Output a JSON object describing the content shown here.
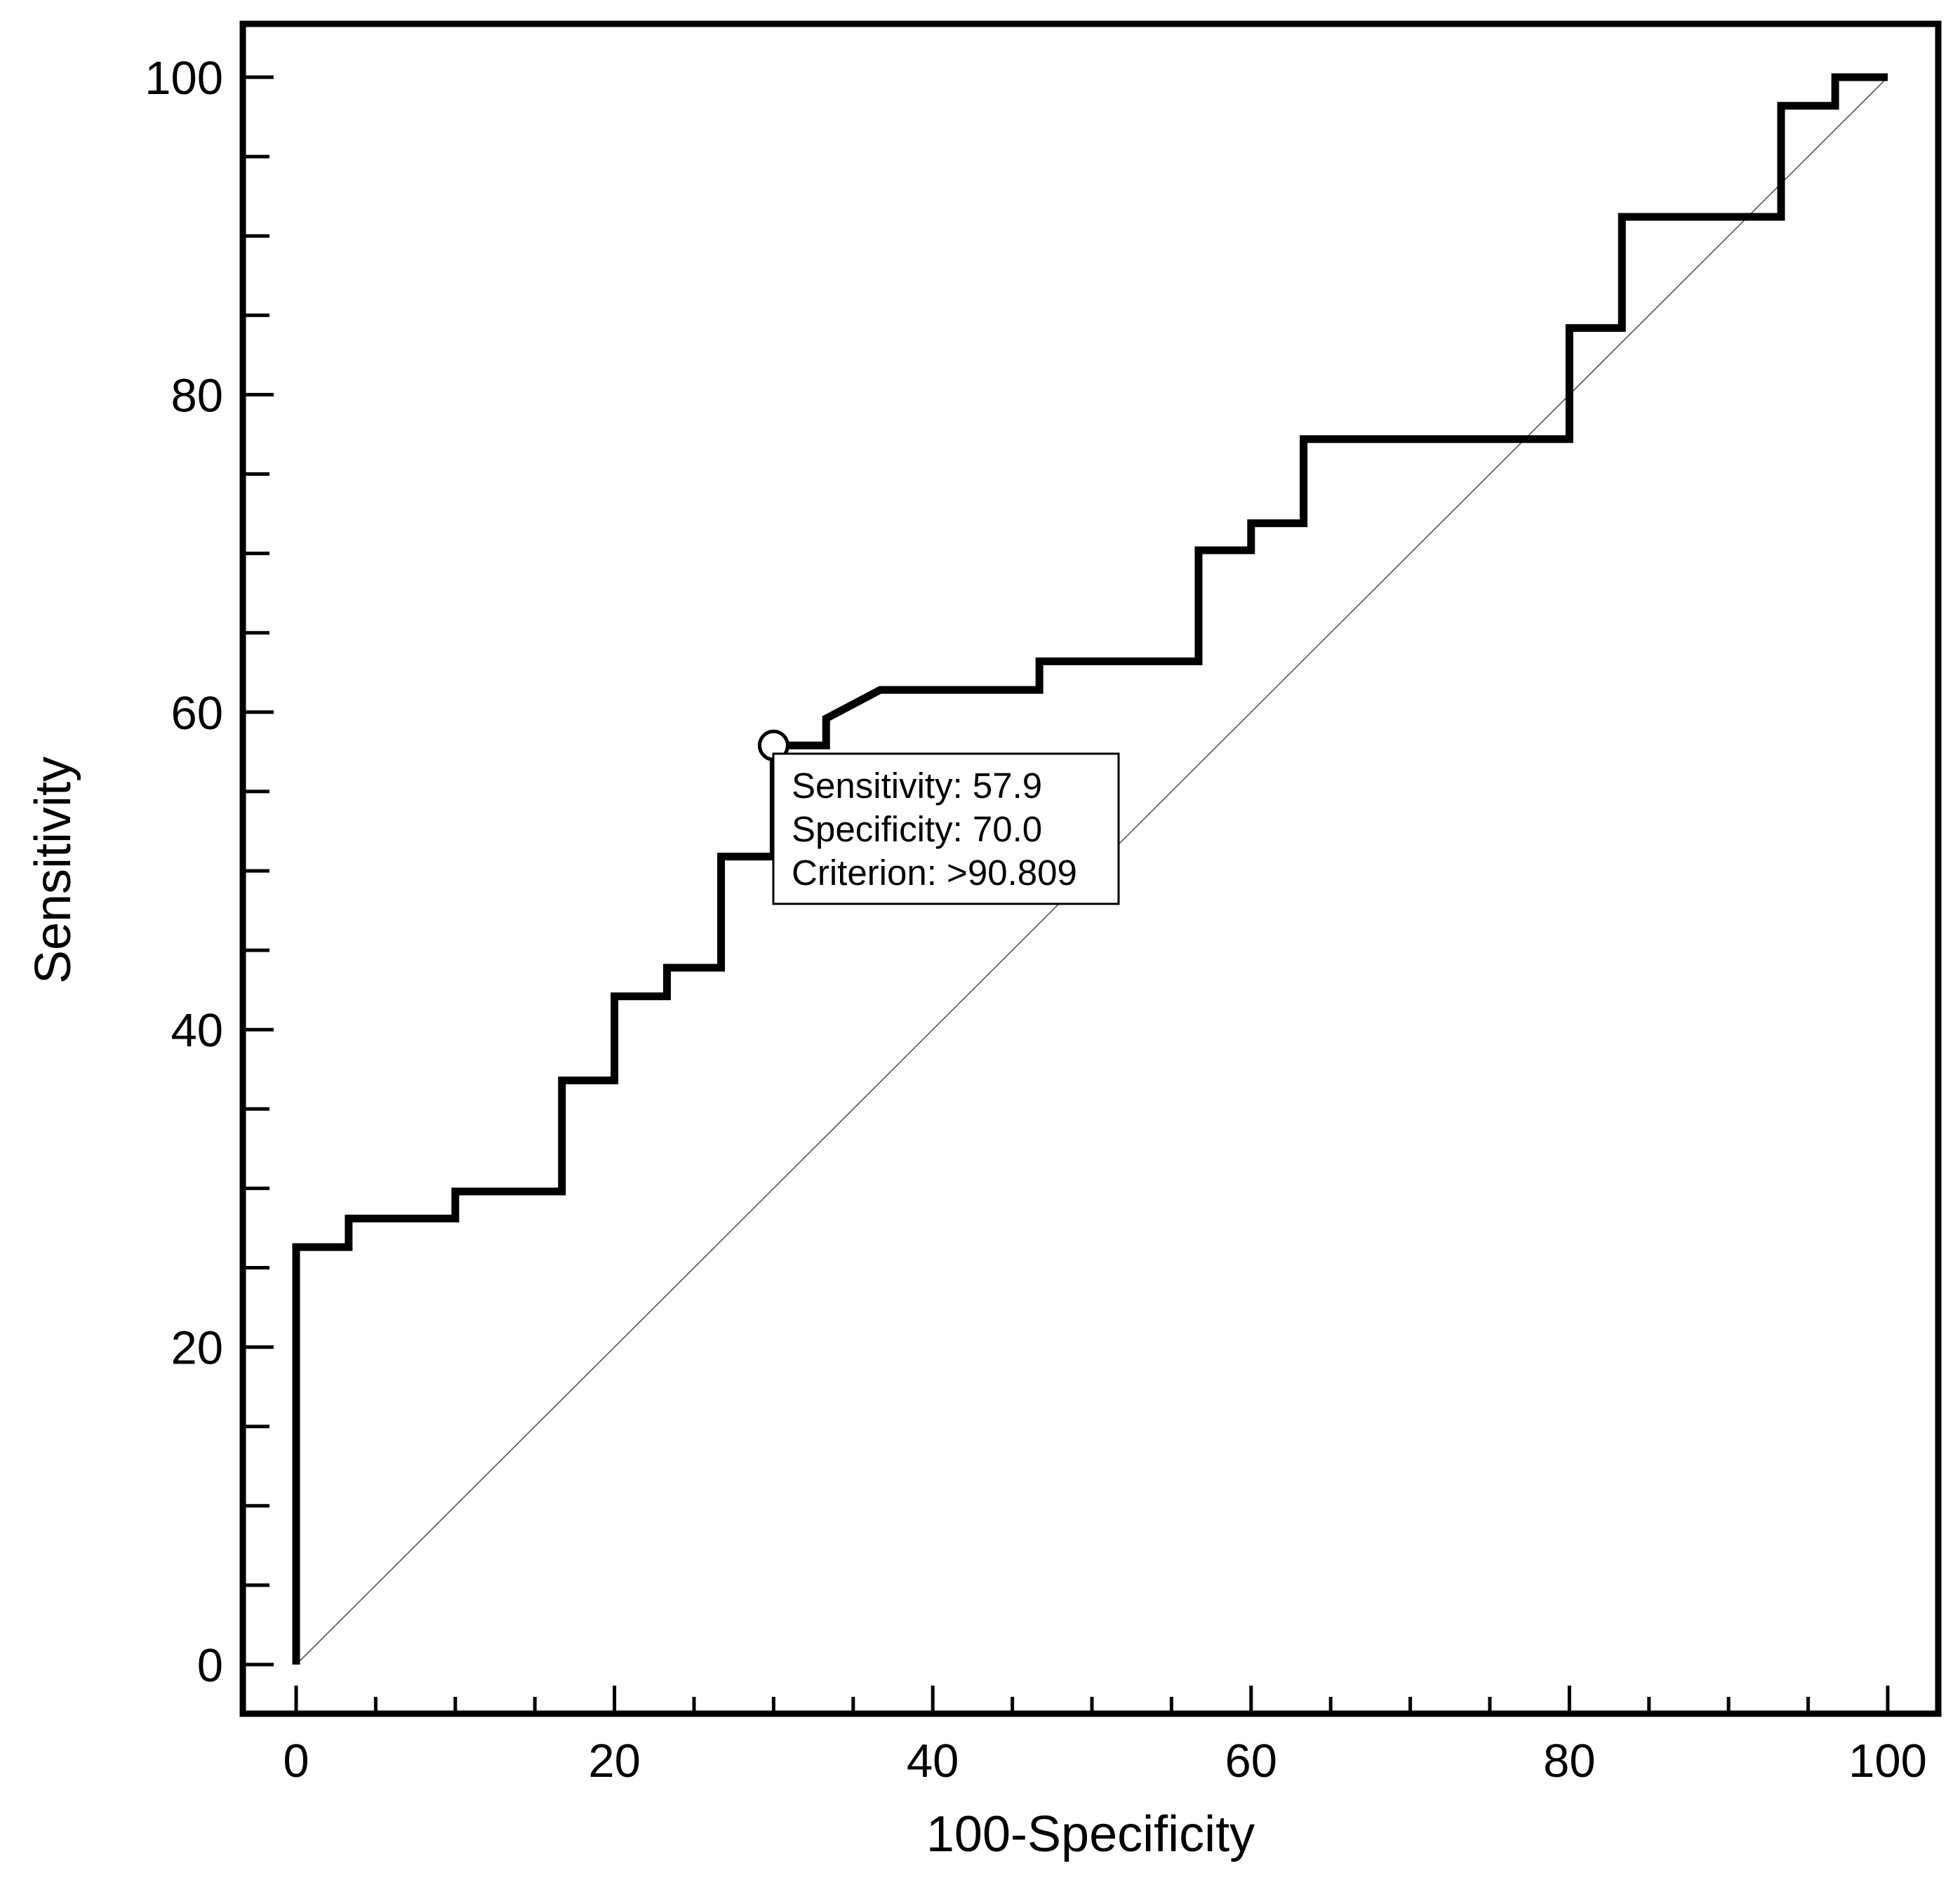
{
  "chart_data": {
    "type": "line",
    "title": "",
    "xlabel": "100-Specificity",
    "ylabel": "Sensitivity",
    "xlim": [
      0,
      100
    ],
    "ylim": [
      0,
      100
    ],
    "grid": false,
    "xticks": [
      0,
      20,
      40,
      60,
      80,
      100
    ],
    "yticks": [
      0,
      20,
      40,
      60,
      80,
      100
    ],
    "minor_tick_step": 5,
    "series": [
      {
        "name": "ROC curve",
        "style": "step",
        "color": "#000000",
        "x": [
          0,
          0,
          3.3,
          3.3,
          10,
          10,
          16.7,
          16.7,
          20,
          20,
          23.3,
          23.3,
          26.7,
          26.7,
          30,
          30,
          33.3,
          33.3,
          36.7,
          46.7,
          46.7,
          56.7,
          56.7,
          60,
          60,
          63.3,
          63.3,
          80,
          80,
          83.3,
          83.3,
          93.3,
          93.3,
          96.7,
          96.7,
          100
        ],
        "y": [
          0,
          26.3,
          26.3,
          28.1,
          28.1,
          29.8,
          29.8,
          36.8,
          36.8,
          42.1,
          42.1,
          43.9,
          43.9,
          50.9,
          50.9,
          57.9,
          57.9,
          59.6,
          61.4,
          61.4,
          63.2,
          63.2,
          70.2,
          70.2,
          71.9,
          71.9,
          77.2,
          77.2,
          84.2,
          84.2,
          91.2,
          91.2,
          98.2,
          98.2,
          100,
          100
        ]
      },
      {
        "name": "Reference line",
        "style": "diagonal",
        "color": "#555555",
        "x": [
          0,
          100
        ],
        "y": [
          0,
          100
        ]
      }
    ],
    "annotations": {
      "optimal_point": {
        "x": 30,
        "y": 57.9
      },
      "tooltip": [
        "Sensitivity: 57.9",
        "Specificity: 70.0",
        "Criterion: >90.809"
      ]
    }
  }
}
